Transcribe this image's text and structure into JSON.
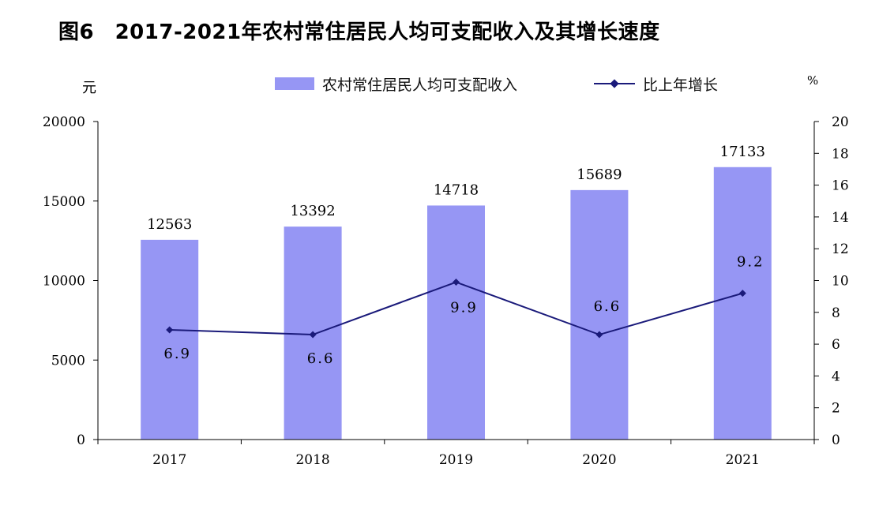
{
  "chart_data": {
    "type": "bar",
    "title": "图6　2017-2021年农村常住居民人均可支配收入及其增长速度",
    "categories": [
      "2017",
      "2018",
      "2019",
      "2020",
      "2021"
    ],
    "series": [
      {
        "name": "农村常住居民人均可支配收入",
        "type": "bar",
        "axis": "left",
        "values": [
          12563,
          13392,
          14718,
          15689,
          17133
        ],
        "color": "#9696f4"
      },
      {
        "name": "比上年增长",
        "type": "line",
        "axis": "right",
        "values": [
          6.9,
          6.6,
          9.9,
          6.6,
          9.2
        ],
        "color": "#1a1a7a"
      }
    ],
    "left_axis": {
      "unit": "元",
      "ylim": [
        0,
        20000
      ],
      "ticks": [
        "0",
        "5000",
        "10000",
        "15000",
        "20000"
      ]
    },
    "right_axis": {
      "unit": "%",
      "ylim": [
        0,
        20
      ],
      "ticks": [
        "0",
        "2",
        "4",
        "6",
        "8",
        "10",
        "12",
        "14",
        "16",
        "18",
        "20"
      ]
    },
    "data_labels": {
      "bars": [
        "12563",
        "13392",
        "14718",
        "15689",
        "17133"
      ],
      "line": [
        "6.9",
        "6.6",
        "9.9",
        "6.6",
        "9.2"
      ]
    },
    "grid": false,
    "legend_position": "top"
  }
}
